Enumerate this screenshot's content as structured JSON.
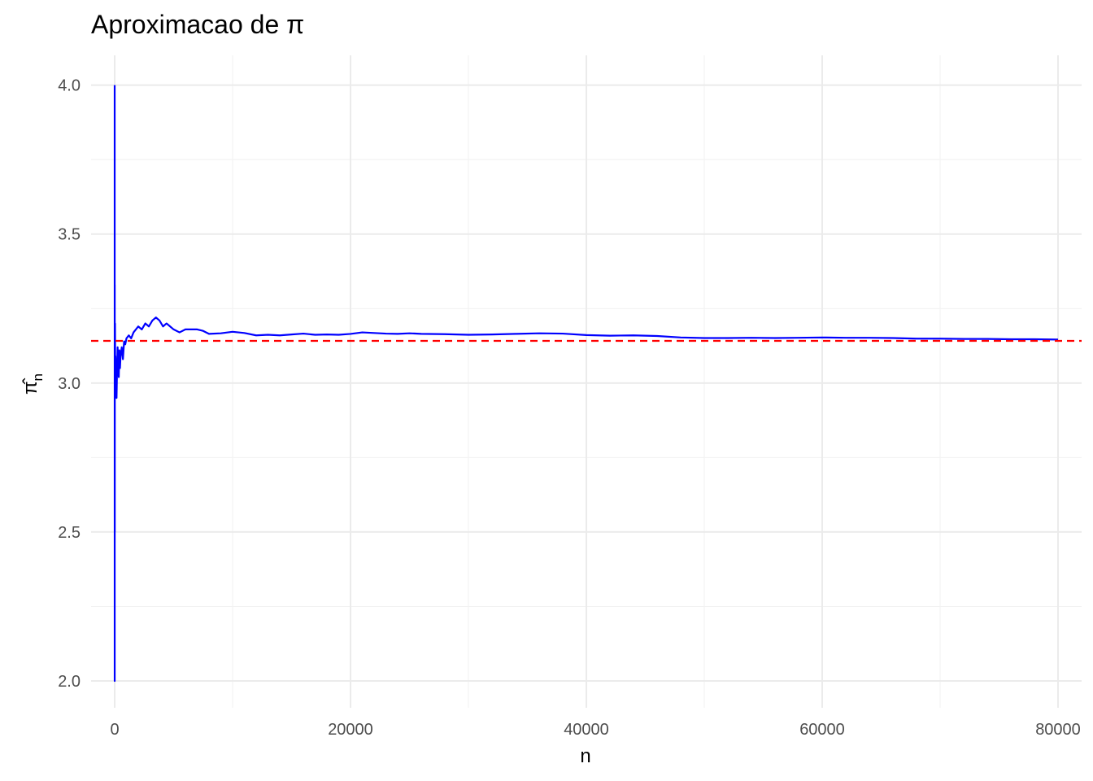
{
  "chart_data": {
    "type": "line",
    "title": "Aproximacao de π",
    "xlabel": "n",
    "ylabel": "π̂",
    "ylabel_subscript": "n",
    "xlim": [
      -2000,
      82000
    ],
    "ylim": [
      1.91,
      4.1
    ],
    "x_ticks": [
      0,
      20000,
      40000,
      60000,
      80000
    ],
    "x_tick_labels": [
      "0",
      "20000",
      "40000",
      "60000",
      "80000"
    ],
    "y_ticks": [
      2.0,
      2.5,
      3.0,
      3.5,
      4.0
    ],
    "y_tick_labels": [
      "2.0",
      "2.5",
      "3.0",
      "3.5",
      "4.0"
    ],
    "grid": true,
    "reference_line": {
      "y": 3.14159,
      "style": "dashed",
      "color": "#ff0000"
    },
    "series": [
      {
        "color": "#0000ff",
        "x": [
          1,
          2,
          3,
          4,
          6,
          8,
          10,
          15,
          20,
          30,
          40,
          50,
          70,
          100,
          130,
          160,
          200,
          250,
          300,
          350,
          400,
          450,
          500,
          600,
          700,
          800,
          900,
          1000,
          1200,
          1400,
          1600,
          1800,
          2000,
          2300,
          2600,
          2900,
          3200,
          3500,
          3800,
          4100,
          4400,
          4700,
          5000,
          5500,
          6000,
          6500,
          7000,
          7500,
          8000,
          9000,
          10000,
          11000,
          12000,
          13000,
          14000,
          15000,
          16000,
          17000,
          18000,
          19000,
          20000,
          21000,
          22000,
          23000,
          24000,
          25000,
          26000,
          28000,
          30000,
          32000,
          34000,
          36000,
          38000,
          40000,
          42000,
          44000,
          46000,
          48000,
          50000,
          52000,
          54000,
          56000,
          58000,
          60000,
          62000,
          64000,
          66000,
          68000,
          70000,
          72000,
          74000,
          76000,
          78000,
          80000
        ],
        "values": [
          4.0,
          2.0,
          2.67,
          3.0,
          3.33,
          2.5,
          2.8,
          3.2,
          3.0,
          3.2,
          3.1,
          2.96,
          3.09,
          3.0,
          3.08,
          2.95,
          3.04,
          3.12,
          3.06,
          3.02,
          3.11,
          3.05,
          3.09,
          3.12,
          3.08,
          3.14,
          3.13,
          3.15,
          3.16,
          3.15,
          3.17,
          3.18,
          3.19,
          3.18,
          3.2,
          3.19,
          3.21,
          3.22,
          3.21,
          3.19,
          3.2,
          3.19,
          3.18,
          3.17,
          3.18,
          3.18,
          3.18,
          3.175,
          3.165,
          3.167,
          3.172,
          3.168,
          3.16,
          3.162,
          3.16,
          3.163,
          3.166,
          3.162,
          3.163,
          3.162,
          3.165,
          3.17,
          3.168,
          3.166,
          3.165,
          3.167,
          3.165,
          3.164,
          3.162,
          3.163,
          3.165,
          3.167,
          3.166,
          3.161,
          3.159,
          3.16,
          3.158,
          3.153,
          3.151,
          3.151,
          3.152,
          3.151,
          3.152,
          3.153,
          3.152,
          3.152,
          3.151,
          3.149,
          3.149,
          3.148,
          3.148,
          3.147,
          3.147,
          3.146
        ]
      }
    ]
  }
}
